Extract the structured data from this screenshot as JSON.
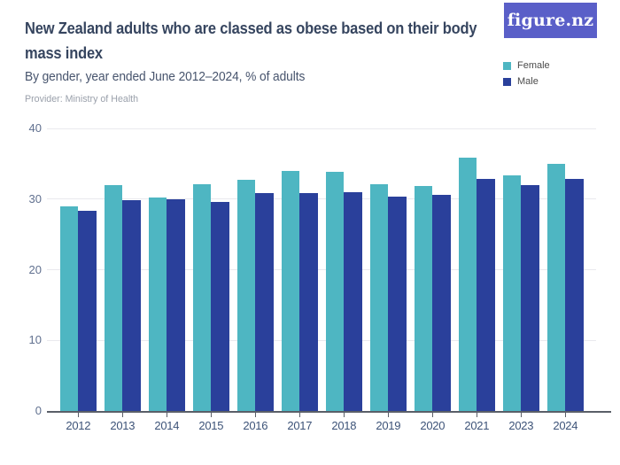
{
  "header": {
    "title": "New Zealand adults who are classed as obese based on their body mass index",
    "subtitle": "By gender, year ended June 2012–2024, % of adults",
    "provider": "Provider: Ministry of Health",
    "logo_text": "figure.nz",
    "logo_bg_color": "#5a5fc8"
  },
  "legend": {
    "items": [
      {
        "label": "Female",
        "color": "#4eb6c2"
      },
      {
        "label": "Male",
        "color": "#2a409b"
      }
    ]
  },
  "chart_data": {
    "type": "bar",
    "title": "New Zealand adults who are classed as obese based on their body mass index",
    "subtitle": "By gender, year ended June 2012–2024, % of adults",
    "xlabel": "",
    "ylabel": "% of adults",
    "ylim": [
      0,
      40
    ],
    "yticks": [
      0,
      10,
      20,
      30,
      40
    ],
    "grid": true,
    "legend_position": "top-right",
    "categories": [
      "2012",
      "2013",
      "2014",
      "2015",
      "2016",
      "2017",
      "2018",
      "2019",
      "2020",
      "2021",
      "2023",
      "2024"
    ],
    "series": [
      {
        "name": "Female",
        "color": "#4eb6c2",
        "values": [
          29.0,
          32.0,
          30.2,
          32.1,
          32.7,
          34.0,
          33.9,
          32.1,
          31.9,
          35.9,
          33.4,
          35.0
        ]
      },
      {
        "name": "Male",
        "color": "#2a409b",
        "values": [
          28.4,
          29.9,
          30.0,
          29.6,
          30.8,
          30.8,
          31.0,
          30.4,
          30.6,
          32.9,
          32.0,
          32.8
        ]
      }
    ]
  }
}
